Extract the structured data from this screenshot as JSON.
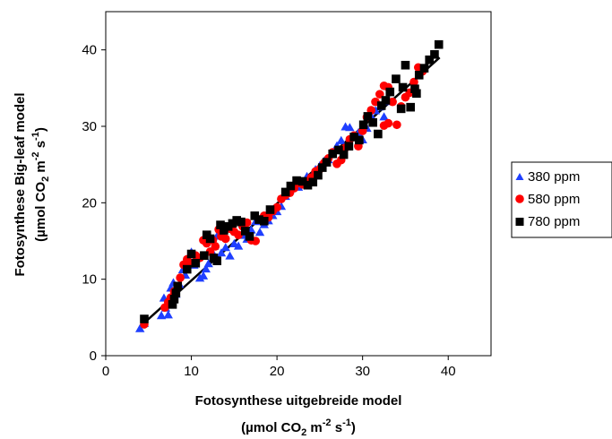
{
  "chart_data": {
    "type": "scatter",
    "xlabel_line1": "Fotosynthese uitgebreide model",
    "ylabel_line1": "Fotosynthese Big-leaf model",
    "unit_label": {
      "open": "(µmol CO",
      "co2_sub": "2",
      "m": " m",
      "m_exp": "-2",
      "s": " s",
      "s_exp": "-1",
      "close": ")"
    },
    "xlim": [
      0,
      45
    ],
    "ylim": [
      0,
      45
    ],
    "x_ticks": [
      0,
      10,
      20,
      30,
      40
    ],
    "y_ticks": [
      0,
      10,
      20,
      30,
      40
    ],
    "grid": false,
    "legend_position": "right",
    "colors": {
      "380 ppm": "#1f3fff",
      "580 ppm": "#ff0000",
      "780 ppm": "#000000",
      "fit_line": "#000000"
    },
    "fit_line": {
      "x": [
        4.5,
        39
      ],
      "y": [
        4.3,
        39
      ]
    },
    "series": [
      {
        "name": "380 ppm",
        "marker": "triangle",
        "points": [
          [
            4,
            3.5
          ],
          [
            4.5,
            4.2
          ],
          [
            6.5,
            5.2
          ],
          [
            6.8,
            7.5
          ],
          [
            7,
            6.2
          ],
          [
            7.3,
            5.3
          ],
          [
            7.6,
            8.8
          ],
          [
            7.9,
            9.5
          ],
          [
            8.2,
            8
          ],
          [
            8.6,
            9.3
          ],
          [
            9,
            11.2
          ],
          [
            9.3,
            10.5
          ],
          [
            9.6,
            12
          ],
          [
            10,
            13.5
          ],
          [
            10.3,
            11.8
          ],
          [
            10.6,
            12.7
          ],
          [
            11,
            10.1
          ],
          [
            11.4,
            10.4
          ],
          [
            11.7,
            11.3
          ],
          [
            12,
            12
          ],
          [
            12.4,
            13.6
          ],
          [
            12.7,
            14.3
          ],
          [
            13,
            15.6
          ],
          [
            13.5,
            13.4
          ],
          [
            14,
            14.1
          ],
          [
            14.5,
            13
          ],
          [
            15,
            14.6
          ],
          [
            15.5,
            14.3
          ],
          [
            16,
            15.7
          ],
          [
            16.5,
            15.2
          ],
          [
            17,
            16.4
          ],
          [
            17.5,
            17.5
          ],
          [
            18,
            16.1
          ],
          [
            18.5,
            17.1
          ],
          [
            19,
            17.6
          ],
          [
            19.5,
            18.3
          ],
          [
            20,
            18.8
          ],
          [
            20.5,
            19.5
          ],
          [
            21,
            20.8
          ],
          [
            21.5,
            21.6
          ],
          [
            22,
            22.1
          ],
          [
            22.5,
            22
          ],
          [
            23,
            22.6
          ],
          [
            23.5,
            23.4
          ],
          [
            24,
            23.1
          ],
          [
            24.5,
            24.3
          ],
          [
            25,
            24.8
          ],
          [
            25.5,
            25.4
          ],
          [
            26,
            25.6
          ],
          [
            26.5,
            26.3
          ],
          [
            27,
            27.4
          ],
          [
            27.5,
            28.1
          ],
          [
            28,
            29.9
          ],
          [
            28.5,
            29.8
          ],
          [
            29,
            28.5
          ],
          [
            29.5,
            29.1
          ],
          [
            30,
            28.2
          ],
          [
            30.5,
            29.7
          ],
          [
            31,
            31.3
          ],
          [
            31.5,
            32
          ],
          [
            32,
            32.5
          ],
          [
            32.5,
            31.2
          ],
          [
            33,
            33.2
          ]
        ]
      },
      {
        "name": "580 ppm",
        "marker": "circle",
        "points": [
          [
            4.5,
            4.1
          ],
          [
            6.9,
            6.3
          ],
          [
            7.3,
            7
          ],
          [
            7.6,
            7.6
          ],
          [
            8,
            8.4
          ],
          [
            8.4,
            9.1
          ],
          [
            8.7,
            10.2
          ],
          [
            9.1,
            11.9
          ],
          [
            9.5,
            12.6
          ],
          [
            10,
            12.1
          ],
          [
            10.5,
            13.1
          ],
          [
            11,
            12.8
          ],
          [
            11.4,
            15.1
          ],
          [
            11.8,
            14.7
          ],
          [
            12.2,
            13.6
          ],
          [
            12.5,
            15.1
          ],
          [
            12.8,
            14.3
          ],
          [
            13.2,
            16.5
          ],
          [
            13.5,
            15.6
          ],
          [
            14,
            15.3
          ],
          [
            14.5,
            16.6
          ],
          [
            15,
            16.2
          ],
          [
            15.5,
            15.8
          ],
          [
            16,
            16.9
          ],
          [
            16.5,
            17.4
          ],
          [
            17,
            15.1
          ],
          [
            17.5,
            15
          ],
          [
            18,
            17.8
          ],
          [
            18.5,
            18.3
          ],
          [
            19,
            18.1
          ],
          [
            19.5,
            18.9
          ],
          [
            20,
            19.4
          ],
          [
            20.5,
            20.5
          ],
          [
            21,
            21
          ],
          [
            21.5,
            21.3
          ],
          [
            22,
            21.9
          ],
          [
            22.5,
            22.6
          ],
          [
            23,
            22.4
          ],
          [
            23.5,
            22.8
          ],
          [
            24,
            23.3
          ],
          [
            24.5,
            24.1
          ],
          [
            25,
            24.4
          ],
          [
            25.5,
            25.2
          ],
          [
            26,
            25.8
          ],
          [
            26.5,
            26.6
          ],
          [
            27,
            25.1
          ],
          [
            27.5,
            25.6
          ],
          [
            28,
            27.2
          ],
          [
            28.5,
            28.3
          ],
          [
            29,
            28.8
          ],
          [
            29.5,
            27.4
          ],
          [
            30,
            29.4
          ],
          [
            30.5,
            31.2
          ],
          [
            31,
            32.1
          ],
          [
            31.5,
            33.2
          ],
          [
            32,
            34.2
          ],
          [
            32.5,
            35.3
          ],
          [
            33,
            35.1
          ],
          [
            33.5,
            33.2
          ],
          [
            34,
            30.2
          ],
          [
            34.5,
            32.6
          ],
          [
            35,
            33.8
          ],
          [
            35.5,
            34.4
          ],
          [
            36,
            35.8
          ],
          [
            36.5,
            37.7
          ],
          [
            37,
            37.2
          ],
          [
            32.5,
            30.1
          ],
          [
            33,
            30.4
          ]
        ]
      },
      {
        "name": "780 ppm",
        "marker": "square",
        "points": [
          [
            4.5,
            4.8
          ],
          [
            7.8,
            6.7
          ],
          [
            8,
            7.4
          ],
          [
            8.2,
            8.2
          ],
          [
            8.4,
            9.1
          ],
          [
            9.5,
            11.3
          ],
          [
            10,
            13.3
          ],
          [
            10.5,
            12.1
          ],
          [
            11.5,
            13.1
          ],
          [
            11.8,
            15.8
          ],
          [
            12.2,
            15.3
          ],
          [
            12.6,
            12.8
          ],
          [
            13,
            12.4
          ],
          [
            13.4,
            17.1
          ],
          [
            13.8,
            16.4
          ],
          [
            14.3,
            16.9
          ],
          [
            14.8,
            17.3
          ],
          [
            15.3,
            17.7
          ],
          [
            15.8,
            17.5
          ],
          [
            16.3,
            16.3
          ],
          [
            16.8,
            15.6
          ],
          [
            17.4,
            18.3
          ],
          [
            17.9,
            17.8
          ],
          [
            18.5,
            17.6
          ],
          [
            19.2,
            19.1
          ],
          [
            21,
            21.4
          ],
          [
            21.6,
            22.2
          ],
          [
            22.3,
            22.9
          ],
          [
            23,
            22.8
          ],
          [
            23.6,
            22.3
          ],
          [
            24.2,
            22.7
          ],
          [
            24.8,
            23.6
          ],
          [
            25.3,
            24.6
          ],
          [
            25.8,
            25.3
          ],
          [
            26.5,
            26.4
          ],
          [
            27.2,
            26.9
          ],
          [
            27.8,
            26.3
          ],
          [
            28.4,
            27.4
          ],
          [
            29,
            28.6
          ],
          [
            29.6,
            28.2
          ],
          [
            30.1,
            30.2
          ],
          [
            30.6,
            31.3
          ],
          [
            31.2,
            30.5
          ],
          [
            31.8,
            29
          ],
          [
            32.2,
            32.7
          ],
          [
            32.7,
            33.4
          ],
          [
            33.2,
            34.5
          ],
          [
            33.9,
            36.2
          ],
          [
            34.5,
            32.3
          ],
          [
            35,
            38
          ],
          [
            35.6,
            32.5
          ],
          [
            36.1,
            34.9
          ],
          [
            36.6,
            36.7
          ],
          [
            37.2,
            37.6
          ],
          [
            37.8,
            38.7
          ],
          [
            38.4,
            39.4
          ],
          [
            38.9,
            40.7
          ],
          [
            36.3,
            34.3
          ],
          [
            34.7,
            35.1
          ]
        ]
      }
    ]
  }
}
